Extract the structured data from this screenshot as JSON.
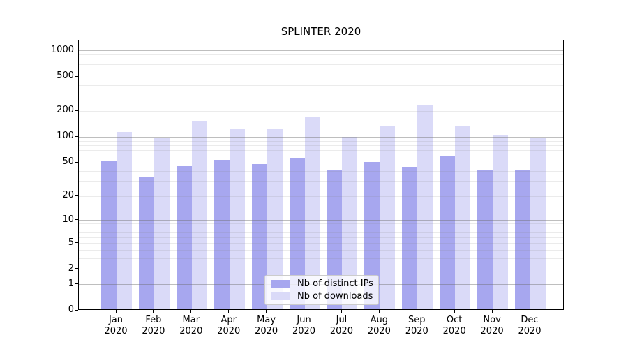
{
  "figure": {
    "title": "SPLINTER 2020"
  },
  "chart_data": {
    "type": "bar",
    "title": "SPLINTER 2020",
    "categories": [
      "Jan",
      "Feb",
      "Mar",
      "Apr",
      "May",
      "Jun",
      "Jul",
      "Aug",
      "Sep",
      "Oct",
      "Nov",
      "Dec"
    ],
    "category_year": "2020",
    "series": [
      {
        "name": "Nb of distinct IPs",
        "color": "#a7a7ef",
        "values": [
          50,
          33,
          44,
          52,
          47,
          55,
          40,
          49,
          43,
          58,
          39,
          39
        ]
      },
      {
        "name": "Nb of downloads",
        "color": "#dadaf8",
        "values": [
          110,
          93,
          148,
          119,
          120,
          168,
          98,
          128,
          230,
          131,
          102,
          96
        ]
      }
    ],
    "xlabel": "",
    "ylabel": "",
    "yscale": "log1p",
    "ylim": [
      0,
      1320
    ],
    "y_ticks": [
      0,
      1,
      2,
      5,
      10,
      20,
      50,
      100,
      200,
      500,
      1000
    ],
    "y_major_grid": [
      1,
      10,
      100,
      1000
    ],
    "y_minor_grid": [
      2,
      3,
      4,
      5,
      6,
      7,
      8,
      9,
      20,
      30,
      40,
      50,
      60,
      70,
      80,
      90,
      200,
      300,
      400,
      500,
      600,
      700,
      800,
      900
    ],
    "grid": true,
    "legend_position": "lower center"
  }
}
